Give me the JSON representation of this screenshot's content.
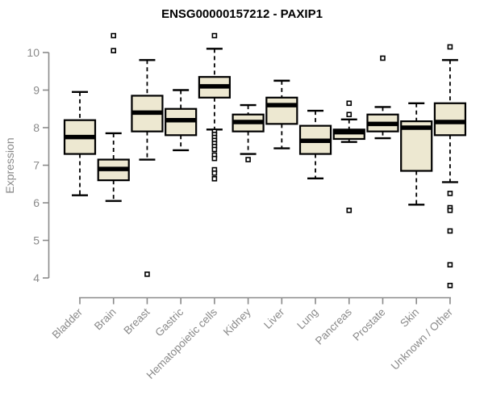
{
  "chart_data": {
    "type": "boxplot",
    "title": "ENSG00000157212 - PAXIP1",
    "ylabel": "Expression",
    "xlabel": "",
    "yticks": [
      4,
      5,
      6,
      7,
      8,
      9,
      10
    ],
    "ylim": [
      3.7,
      10.6
    ],
    "grid": false,
    "legend": false,
    "categories": [
      "Bladder",
      "Brain",
      "Breast",
      "Gastric",
      "Hematopoietic cells",
      "Kidney",
      "Liver",
      "Lung",
      "Pancreas",
      "Prostate",
      "Skin",
      "Unknown / Other"
    ],
    "boxes": [
      {
        "category": "Bladder",
        "whisker_low": 6.2,
        "q1": 7.3,
        "median": 7.75,
        "q3": 8.2,
        "whisker_high": 8.95,
        "outliers": []
      },
      {
        "category": "Brain",
        "whisker_low": 6.05,
        "q1": 6.6,
        "median": 6.9,
        "q3": 7.15,
        "whisker_high": 7.85,
        "outliers": [
          10.45,
          10.05
        ]
      },
      {
        "category": "Breast",
        "whisker_low": 7.15,
        "q1": 7.9,
        "median": 8.4,
        "q3": 8.85,
        "whisker_high": 9.8,
        "outliers": [
          4.1
        ]
      },
      {
        "category": "Gastric",
        "whisker_low": 7.4,
        "q1": 7.8,
        "median": 8.2,
        "q3": 8.5,
        "whisker_high": 9.0,
        "outliers": []
      },
      {
        "category": "Hematopoietic cells",
        "whisker_low": 7.95,
        "q1": 8.8,
        "median": 9.1,
        "q3": 9.35,
        "whisker_high": 10.1,
        "outliers": [
          10.45,
          7.9,
          7.82,
          7.74,
          7.66,
          7.58,
          7.5,
          7.42,
          7.27,
          7.18,
          6.88,
          6.79,
          6.64
        ]
      },
      {
        "category": "Kidney",
        "whisker_low": 7.3,
        "q1": 7.9,
        "median": 8.15,
        "q3": 8.35,
        "whisker_high": 8.6,
        "outliers": [
          7.15
        ]
      },
      {
        "category": "Liver",
        "whisker_low": 7.45,
        "q1": 8.1,
        "median": 8.6,
        "q3": 8.8,
        "whisker_high": 9.25,
        "outliers": []
      },
      {
        "category": "Lung",
        "whisker_low": 6.65,
        "q1": 7.3,
        "median": 7.65,
        "q3": 8.05,
        "whisker_high": 8.45,
        "outliers": []
      },
      {
        "category": "Pancreas",
        "whisker_low": 7.62,
        "q1": 7.7,
        "median": 7.88,
        "q3": 7.95,
        "whisker_high": 8.22,
        "outliers": [
          8.65,
          8.35,
          5.8
        ]
      },
      {
        "category": "Prostate",
        "whisker_low": 7.72,
        "q1": 7.9,
        "median": 8.1,
        "q3": 8.35,
        "whisker_high": 8.55,
        "outliers": [
          9.85
        ]
      },
      {
        "category": "Skin",
        "whisker_low": 5.95,
        "q1": 6.85,
        "median": 8.0,
        "q3": 8.17,
        "whisker_high": 8.65,
        "outliers": []
      },
      {
        "category": "Unknown / Other",
        "whisker_low": 6.55,
        "q1": 7.8,
        "median": 8.15,
        "q3": 8.65,
        "whisker_high": 9.8,
        "outliers": [
          10.15,
          6.25,
          5.87,
          5.8,
          5.25,
          4.35,
          3.8
        ]
      }
    ],
    "colors": {
      "box_fill": "#EDE8D1",
      "box_border": "#000000",
      "whisker": "#000000",
      "outlier": "#000000",
      "axis": "#8a8a8a",
      "tick_label": "#8a8a8a",
      "title": "#000000"
    }
  }
}
